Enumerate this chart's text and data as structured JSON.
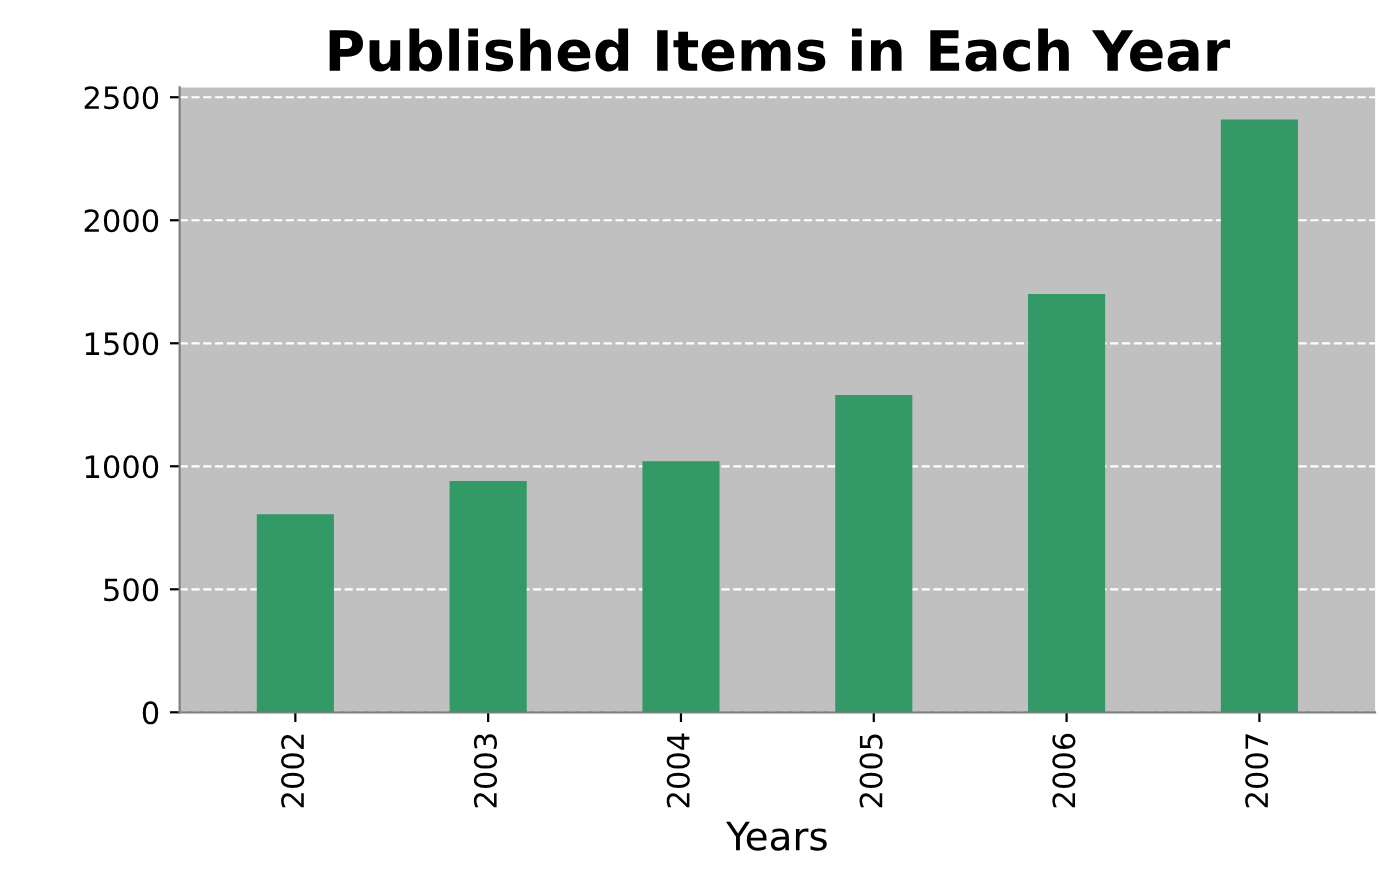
{
  "chart_data": {
    "type": "bar",
    "title": "Published Items in Each Year",
    "xlabel": "Years",
    "categories": [
      "2002",
      "2003",
      "2004",
      "2005",
      "2006",
      "2007"
    ],
    "values": [
      805,
      940,
      1020,
      1290,
      1700,
      2410
    ],
    "color": "#339966",
    "ylim": [
      0,
      2540
    ],
    "yticks": [
      0,
      500,
      1000,
      1500,
      2000,
      2500
    ],
    "grid": "y"
  }
}
